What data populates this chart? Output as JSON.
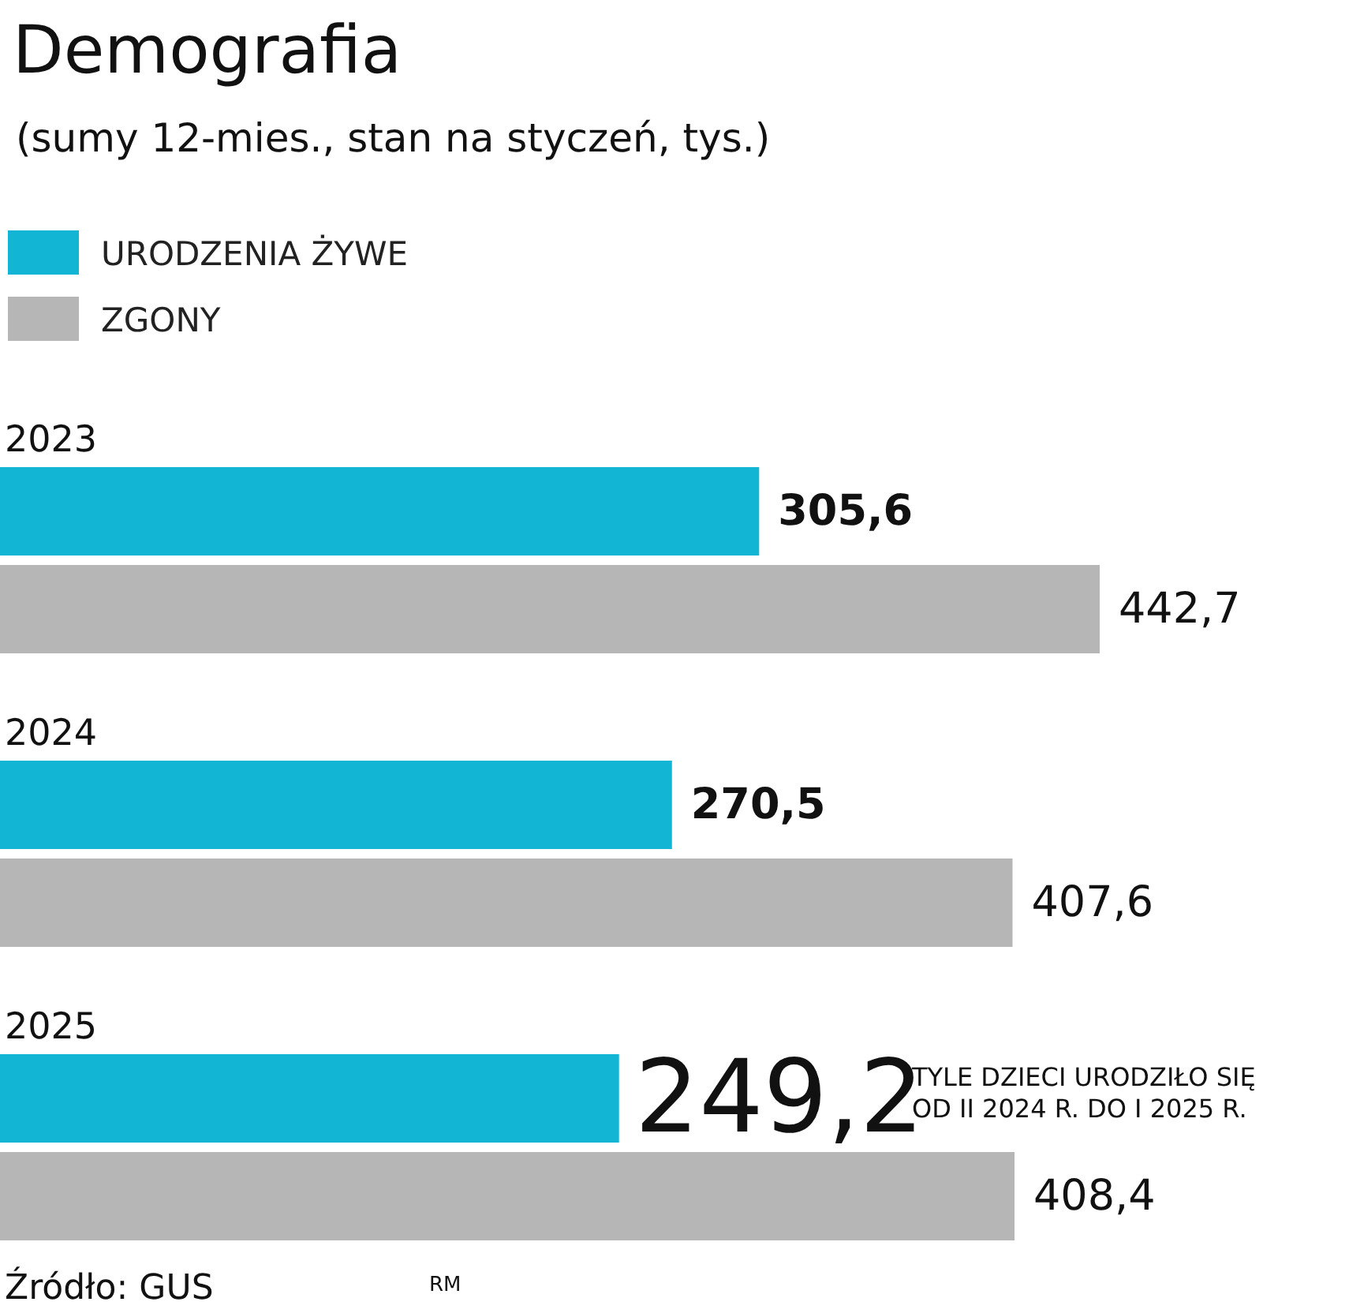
{
  "chart_data": {
    "type": "bar",
    "orientation": "horizontal",
    "title": "Demografia",
    "subtitle": "(sumy 12-mies., stan na styczeń, tys.)",
    "categories": [
      "2023",
      "2024",
      "2025"
    ],
    "series": [
      {
        "name": "URODZENIA ŻYWE",
        "color": "#12b5d4",
        "values": [
          305.6,
          270.5,
          249.2
        ],
        "value_labels": [
          "305,6",
          "270,5",
          "249,2"
        ]
      },
      {
        "name": "ZGONY",
        "color": "#b7b6b7",
        "values": [
          442.7,
          407.6,
          408.4
        ],
        "value_labels": [
          "442,7",
          "407,6",
          "408,4"
        ]
      }
    ],
    "legend": "top left",
    "annotations": [
      "TYLE DZIECI URODZIŁO SIĘ OD II 2024 R. DO I 2025 R.",
      "Źródło: GUS",
      "RM"
    ]
  }
}
